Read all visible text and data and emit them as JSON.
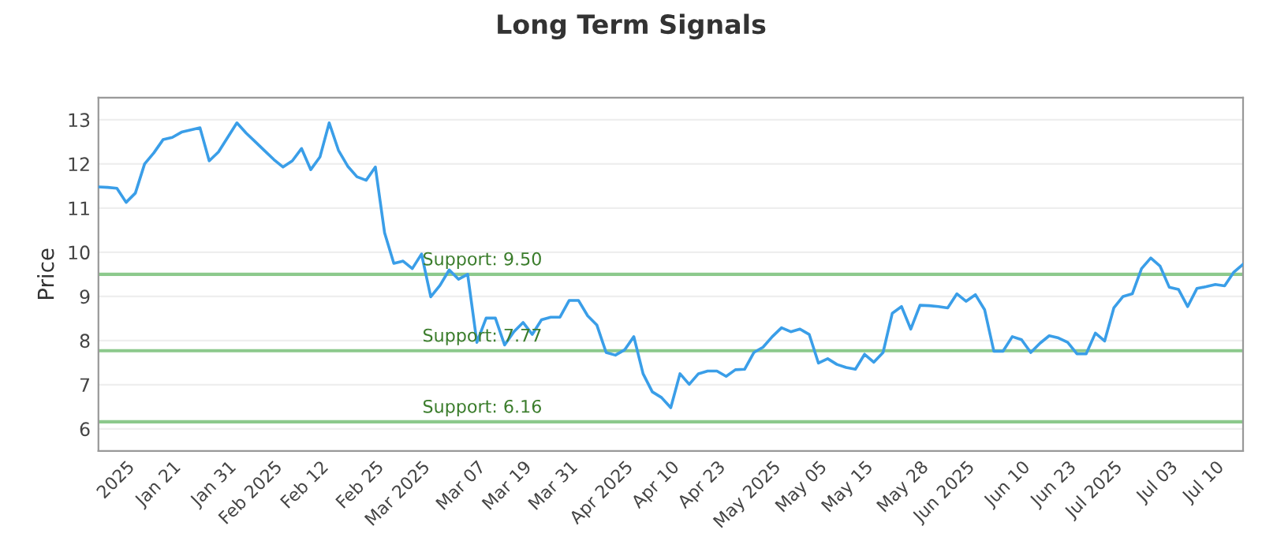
{
  "chart_data": {
    "type": "line",
    "title": "Long Term Signals",
    "ylabel": "Price",
    "categories": [
      null,
      null,
      null,
      "2025",
      null,
      null,
      null,
      null,
      "Jan 21",
      null,
      null,
      null,
      null,
      null,
      "Jan 31",
      null,
      null,
      null,
      null,
      "Feb 2025",
      null,
      null,
      null,
      null,
      "Feb 12",
      null,
      null,
      null,
      null,
      null,
      "Feb 25",
      null,
      null,
      null,
      null,
      "Mar 2025",
      null,
      null,
      null,
      null,
      null,
      "Mar 07",
      null,
      null,
      null,
      null,
      "Mar 19",
      null,
      null,
      null,
      null,
      "Mar 31",
      null,
      null,
      null,
      null,
      null,
      "Apr 2025",
      null,
      null,
      null,
      null,
      "Apr 10",
      null,
      null,
      null,
      null,
      "Apr 23",
      null,
      null,
      null,
      null,
      null,
      "May 2025",
      null,
      null,
      null,
      null,
      "May 05",
      null,
      null,
      null,
      null,
      "May 15",
      null,
      null,
      null,
      null,
      null,
      "May 28",
      null,
      null,
      null,
      null,
      "Jun 2025",
      null,
      null,
      null,
      null,
      null,
      "Jun 10",
      null,
      null,
      null,
      null,
      "Jun 23",
      null,
      null,
      null,
      null,
      "Jul 2025",
      null,
      null,
      null,
      null,
      null,
      "Jul 03",
      null,
      null,
      null,
      null,
      "Jul 10",
      null,
      null,
      null
    ],
    "series": [
      {
        "color": "#3a9ee8",
        "values": [
          11.48,
          11.47,
          11.45,
          11.13,
          11.34,
          12.0,
          12.25,
          12.55,
          12.6,
          12.72,
          12.77,
          12.82,
          12.07,
          12.27,
          12.6,
          12.93,
          12.7,
          12.5,
          12.3,
          12.1,
          11.93,
          12.07,
          12.35,
          11.87,
          12.16,
          12.93,
          12.31,
          11.95,
          11.71,
          11.63,
          11.93,
          10.44,
          9.75,
          9.8,
          9.63,
          9.96,
          8.99,
          9.25,
          9.6,
          9.39,
          9.5,
          7.96,
          8.51,
          8.51,
          7.9,
          8.2,
          8.41,
          8.14,
          8.47,
          8.53,
          8.53,
          8.91,
          8.91,
          8.56,
          8.35,
          7.73,
          7.67,
          7.79,
          8.09,
          7.25,
          6.84,
          6.71,
          6.48,
          7.25,
          7.01,
          7.25,
          7.31,
          7.31,
          7.19,
          7.34,
          7.35,
          7.73,
          7.85,
          8.09,
          8.29,
          8.2,
          8.26,
          8.14,
          7.49,
          7.59,
          7.46,
          7.39,
          7.35,
          7.69,
          7.51,
          7.73,
          8.62,
          8.77,
          8.26,
          8.8,
          8.79,
          8.77,
          8.74,
          9.06,
          8.89,
          9.04,
          8.7,
          7.76,
          7.76,
          8.09,
          8.02,
          7.73,
          7.94,
          8.11,
          8.06,
          7.96,
          7.7,
          7.7,
          8.17,
          7.99,
          8.74,
          9.0,
          9.06,
          9.63,
          9.87,
          9.69,
          9.21,
          9.16,
          8.77,
          9.18,
          9.22,
          9.27,
          9.24,
          9.55,
          9.73
        ]
      }
    ],
    "ylim": [
      5.5,
      13.5
    ],
    "yticks": [
      6,
      7,
      8,
      9,
      10,
      11,
      12,
      13
    ],
    "grid": "y",
    "line_style": "solid",
    "ref_lines": [
      {
        "axis": "y",
        "value": 9.5,
        "label": "Support: 9.50",
        "color": "#8cc98c"
      },
      {
        "axis": "y",
        "value": 7.77,
        "label": "Support: 7.77",
        "color": "#8cc98c"
      },
      {
        "axis": "y",
        "value": 6.16,
        "label": "Support: 6.16",
        "color": "#8cc98c"
      }
    ]
  }
}
